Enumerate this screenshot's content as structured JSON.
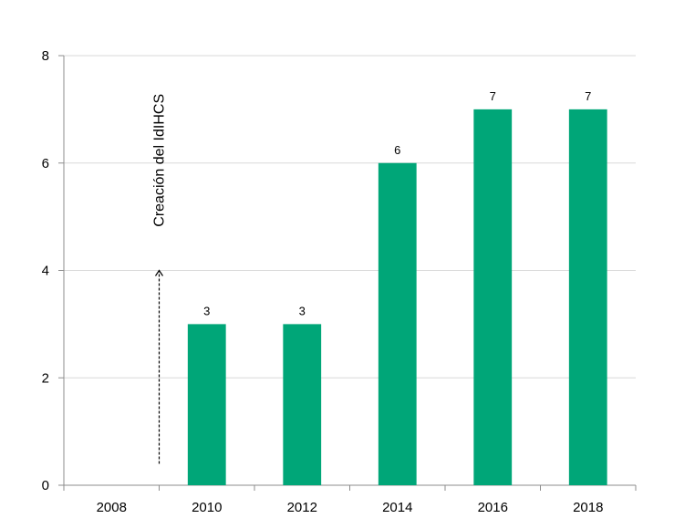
{
  "chart_data": {
    "type": "bar",
    "categories": [
      "2008",
      "2010",
      "2012",
      "2014",
      "2016",
      "2018"
    ],
    "values": [
      null,
      3,
      3,
      6,
      7,
      7
    ],
    "data_labels": [
      "",
      "3",
      "3",
      "6",
      "7",
      "7"
    ],
    "ylim": [
      0,
      8
    ],
    "yticks": [
      0,
      2,
      4,
      6,
      8
    ],
    "ytick_labels": [
      "0",
      "2",
      "4",
      "6",
      "8"
    ],
    "grid": true,
    "bar_color": "#00A678",
    "annotation": {
      "text": "Creación del IdIHCS",
      "between_categories": [
        "2008",
        "2010"
      ],
      "arrow_from": 0.4,
      "arrow_to": 4.0,
      "arrow_style": "dashed"
    }
  }
}
